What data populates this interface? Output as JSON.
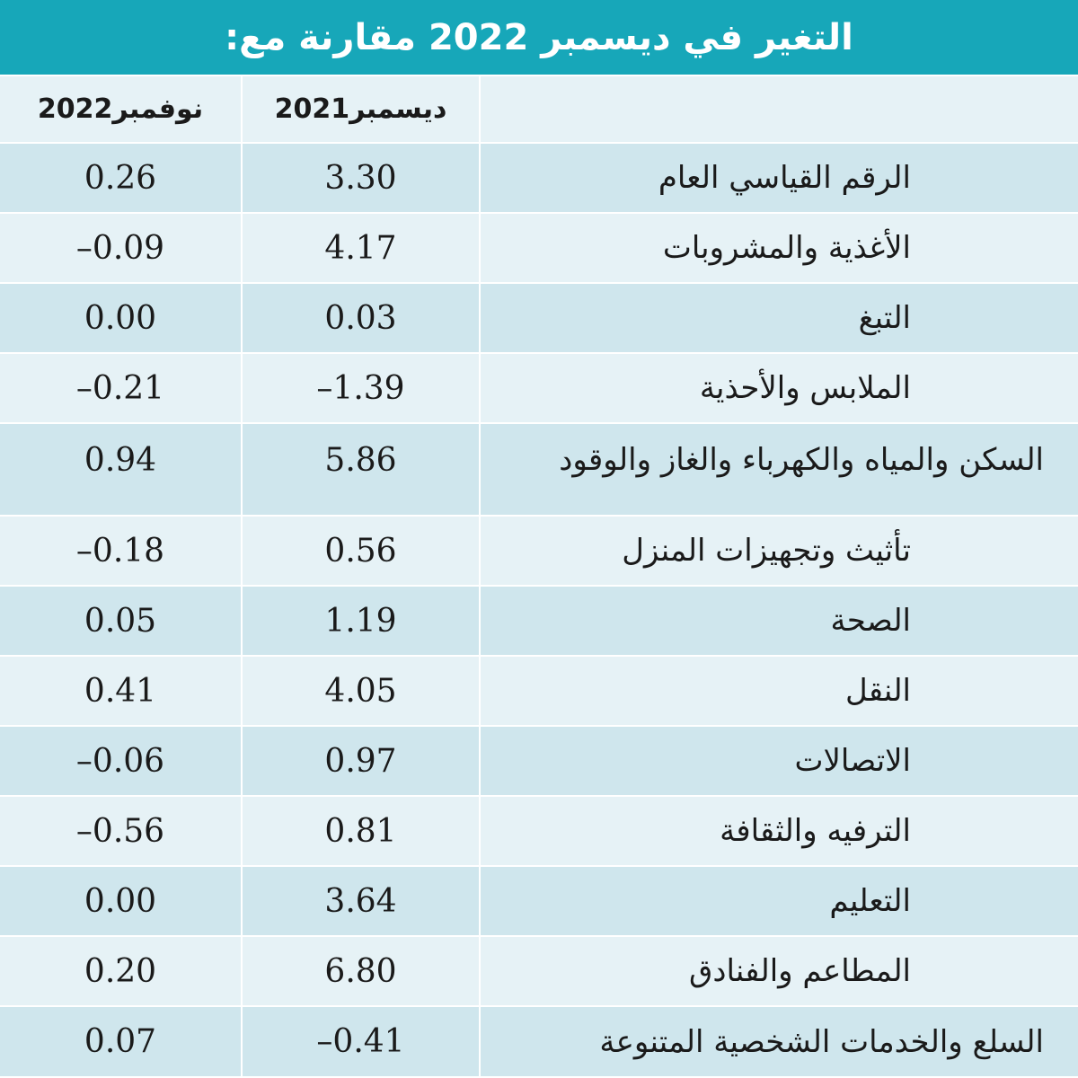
{
  "title": "التغير في ديسمبر 2022 مقارنة مع:",
  "table": {
    "headers": [
      "ديسمبر2021",
      "نوفمبر2022"
    ],
    "rows": [
      [
        "الرقم القياسي العام",
        "3.30",
        "0.26"
      ],
      [
        "الأغذية والمشروبات",
        "4.17",
        "–0.09"
      ],
      [
        "التبغ",
        "0.03",
        "0.00"
      ],
      [
        "الملابس والأحذية",
        "–1.39",
        "–0.21"
      ],
      [
        "السكن والمياه والكهرباء والغاز والوقود",
        "5.86",
        "0.94"
      ],
      [
        "تأثيث وتجهيزات المنزل",
        "0.56",
        "–0.18"
      ],
      [
        "الصحة",
        "1.19",
        "0.05"
      ],
      [
        "النقل",
        "4.05",
        "0.41"
      ],
      [
        "الاتصالات",
        "0.97",
        "–0.06"
      ],
      [
        "الترفيه والثقافة",
        "0.81",
        "–0.56"
      ],
      [
        "التعليم",
        "3.64",
        "0.00"
      ],
      [
        "المطاعم والفنادق",
        "6.80",
        "0.20"
      ],
      [
        "السلع والخدمات الشخصية  المتنوعة",
        "–0.41",
        "0.07"
      ]
    ]
  }
}
